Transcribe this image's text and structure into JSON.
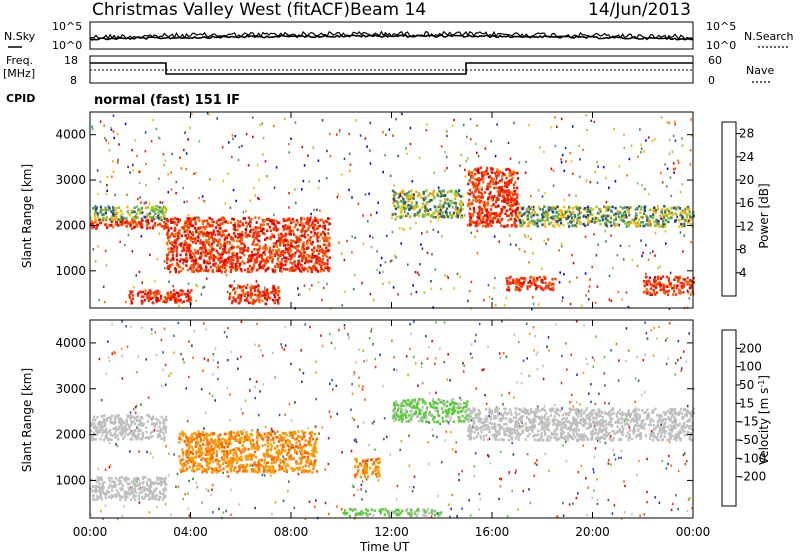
{
  "header": {
    "station": "Christmas Valley West (fitACF)",
    "beam": "Beam 14",
    "date": "14/Jun/2013"
  },
  "noise_panel": {
    "left_label": "N.Sky",
    "right_label": "N.Search",
    "left_ticks": [
      "10^5",
      "10^0"
    ],
    "right_ticks": [
      "10^5",
      "10^0"
    ]
  },
  "freq_panel": {
    "left_label_1": "Freq.",
    "left_label_2": "[MHz]",
    "left_ticks": [
      "18",
      "8"
    ],
    "right_label": "Nave",
    "right_ticks": [
      "60",
      "0"
    ]
  },
  "cpid": {
    "label": "CPID",
    "text": "normal (fast) 151 IF"
  },
  "colors": {
    "power_scale": [
      "#0000ff",
      "#2b3f8e",
      "#3d7a5a",
      "#4e9a6a",
      "#7fcf3a",
      "#e6c800",
      "#ffa500",
      "#ff6a00",
      "#ff2a00",
      "#e00000"
    ],
    "velocity_scale": [
      "#2233aa",
      "#3355bb",
      "#3a7a3a",
      "#55cc33",
      "#bfbfbf",
      "#bfbfbf",
      "#ff9900",
      "#ff6600",
      "#ff3300",
      "#ee0000"
    ]
  },
  "chart_data": [
    {
      "type": "heatmap",
      "panel": "power",
      "ylabel": "Slant Range [km]",
      "yticks": [
        "1000",
        "2000",
        "3000",
        "4000"
      ],
      "ylim": [
        180,
        4500
      ],
      "colorbar_label": "Power [dB]",
      "colorbar_ticks": [
        "4",
        "8",
        "12",
        "16",
        "20",
        "24",
        "28"
      ],
      "colorbar_range": [
        0,
        30
      ],
      "bands": [
        {
          "t_start": 0.0,
          "t_end": 3.0,
          "range_low": 1950,
          "range_high": 2150,
          "level": "high"
        },
        {
          "t_start": 0.0,
          "t_end": 3.0,
          "range_low": 2150,
          "range_high": 2450,
          "level": "medium"
        },
        {
          "t_start": 3.0,
          "t_end": 9.5,
          "range_low": 1000,
          "range_high": 2200,
          "level": "high"
        },
        {
          "t_start": 1.5,
          "t_end": 4.0,
          "range_low": 300,
          "range_high": 600,
          "level": "high"
        },
        {
          "t_start": 5.5,
          "t_end": 7.5,
          "range_low": 300,
          "range_high": 700,
          "level": "high"
        },
        {
          "t_start": 12.0,
          "t_end": 14.8,
          "range_low": 2200,
          "range_high": 2800,
          "level": "medium"
        },
        {
          "t_start": 15.0,
          "t_end": 17.0,
          "range_low": 2000,
          "range_high": 3300,
          "level": "high"
        },
        {
          "t_start": 17.0,
          "t_end": 24.0,
          "range_low": 2000,
          "range_high": 2450,
          "level": "medium"
        },
        {
          "t_start": 16.5,
          "t_end": 18.5,
          "range_low": 600,
          "range_high": 900,
          "level": "high"
        },
        {
          "t_start": 22.0,
          "t_end": 24.0,
          "range_low": 500,
          "range_high": 900,
          "level": "high"
        }
      ]
    },
    {
      "type": "heatmap",
      "panel": "velocity",
      "ylabel": "Slant Range [km]",
      "yticks": [
        "1000",
        "2000",
        "3000",
        "4000"
      ],
      "ylim": [
        180,
        4500
      ],
      "xlabel": "Time UT",
      "xticks": [
        "00:00",
        "04:00",
        "08:00",
        "12:00",
        "16:00",
        "20:00",
        "00:00"
      ],
      "colorbar_label": "Velocity [m s^-1]",
      "colorbar_ticks": [
        "200",
        "100",
        "50",
        "15",
        "-15",
        "-50",
        "-100",
        "-200"
      ],
      "colorbar_range": [
        -250,
        250
      ],
      "bands": [
        {
          "t_start": 0.0,
          "t_end": 3.0,
          "range_low": 1900,
          "range_high": 2450,
          "level": "near-zero"
        },
        {
          "t_start": 0.0,
          "t_end": 3.0,
          "range_low": 600,
          "range_high": 1100,
          "level": "near-zero"
        },
        {
          "t_start": 3.5,
          "t_end": 9.0,
          "range_low": 1200,
          "range_high": 2100,
          "level": "negative"
        },
        {
          "t_start": 10.5,
          "t_end": 11.5,
          "range_low": 1100,
          "range_high": 1500,
          "level": "negative"
        },
        {
          "t_start": 12.0,
          "t_end": 15.0,
          "range_low": 2300,
          "range_high": 2800,
          "level": "positive"
        },
        {
          "t_start": 15.0,
          "t_end": 24.0,
          "range_low": 1900,
          "range_high": 2600,
          "level": "near-zero"
        },
        {
          "t_start": 10.0,
          "t_end": 14.0,
          "range_low": 250,
          "range_high": 400,
          "level": "positive"
        }
      ]
    }
  ]
}
